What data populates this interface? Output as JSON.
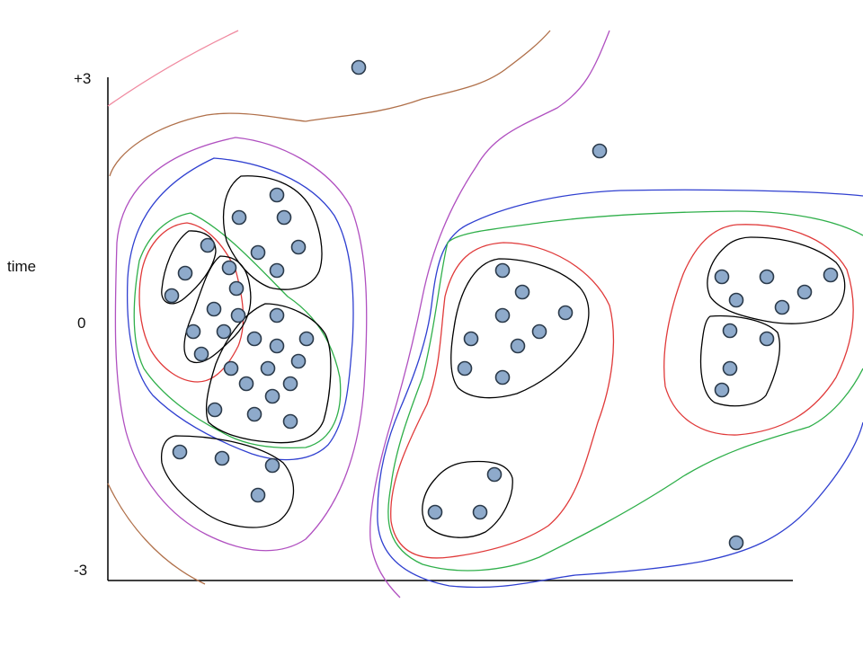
{
  "axis": {
    "y_label": "time",
    "tick_top": "+3",
    "tick_mid": "0",
    "tick_bottom": "-3"
  },
  "colors": {
    "point_fill": "#8eaacb",
    "point_stroke": "#2b3a4a",
    "black": "#000000",
    "red": "#e03a3a",
    "green": "#2faf4a",
    "blue": "#3040d0",
    "purple": "#b050c0",
    "brown": "#b0704a",
    "pink": "#f08aa0"
  }
}
